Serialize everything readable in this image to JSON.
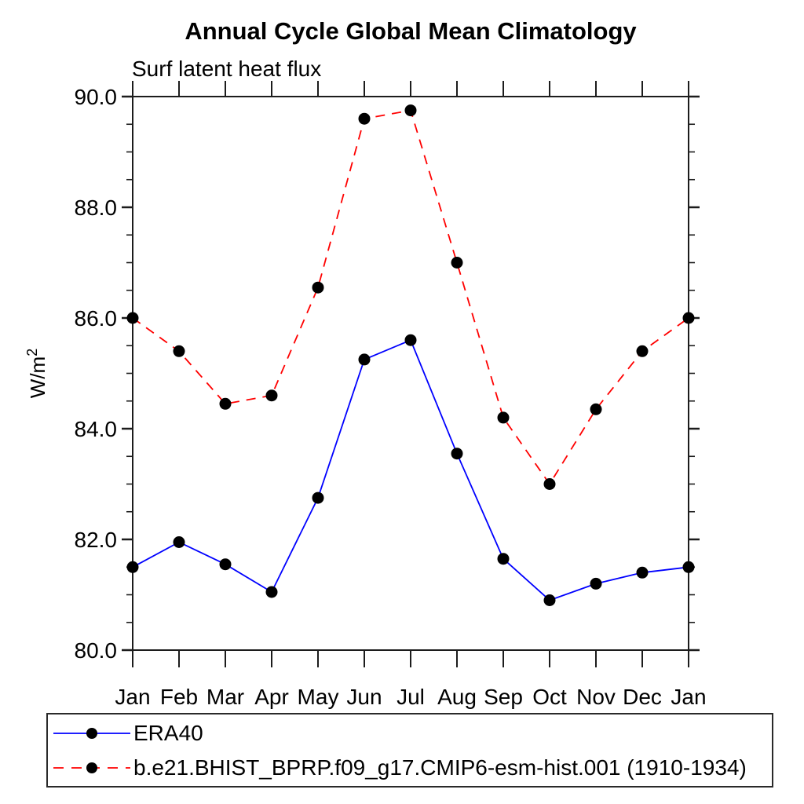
{
  "title": "Annual Cycle Global Mean Climatology",
  "subtitle": "Surf latent heat flux",
  "chart_data": {
    "type": "line",
    "categories": [
      "Jan",
      "Feb",
      "Mar",
      "Apr",
      "May",
      "Jun",
      "Jul",
      "Aug",
      "Sep",
      "Oct",
      "Nov",
      "Dec",
      "Jan"
    ],
    "ylabel": "W/m²",
    "ylim": [
      80.0,
      90.0
    ],
    "ytick_major": [
      80,
      82,
      84,
      86,
      88,
      90
    ],
    "ytick_labels": [
      "80.0",
      "82.0",
      "84.0",
      "86.0",
      "88.0",
      "90.0"
    ],
    "ytick_minor_interval": 0.5,
    "grid": false,
    "legend_position": "bottom-left",
    "axis_color": "#1c1c1c",
    "marker_color": "#000000",
    "series": [
      {
        "key": "era40",
        "name": "ERA40",
        "color": "#0000ff",
        "line_style": "solid",
        "marker": "filled-circle",
        "values": [
          81.5,
          81.95,
          81.55,
          81.05,
          82.75,
          85.25,
          85.6,
          83.55,
          81.65,
          80.9,
          81.2,
          81.4,
          81.5
        ]
      },
      {
        "key": "model",
        "name": "b.e21.BHIST_BPRP.f09_g17.CMIP6-esm-hist.001 (1910-1934)",
        "color": "#ff0000",
        "line_style": "dashed",
        "marker": "filled-circle",
        "values": [
          86.0,
          85.4,
          84.45,
          84.6,
          86.55,
          89.6,
          89.75,
          87.0,
          84.2,
          83.0,
          84.35,
          85.4,
          86.0
        ]
      }
    ]
  }
}
